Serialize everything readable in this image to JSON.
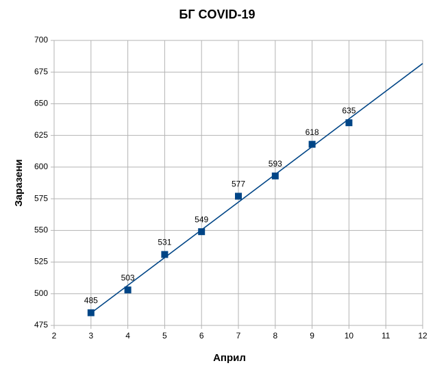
{
  "chart_data": {
    "type": "scatter",
    "title": "БГ COVID-19",
    "x_label": "Април",
    "y_label": "Заразени",
    "series": [
      {
        "name": "Заразени",
        "color": "#004586",
        "x": [
          3,
          4,
          5,
          6,
          7,
          8,
          9,
          10
        ],
        "values": [
          485,
          503,
          531,
          549,
          577,
          593,
          618,
          635
        ]
      }
    ],
    "xlim": [
      2,
      12
    ],
    "xticks": [
      2,
      3,
      4,
      5,
      6,
      7,
      8,
      9,
      10,
      11,
      12
    ],
    "ylim": [
      475,
      700
    ],
    "yticks": [
      475,
      500,
      525,
      550,
      575,
      600,
      625,
      650,
      675,
      700
    ],
    "grid": true,
    "trendline": true,
    "data_labels": true
  }
}
